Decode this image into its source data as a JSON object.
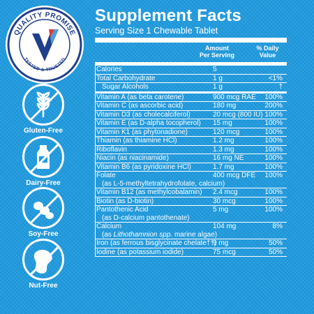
{
  "badge": {
    "top_text": "QUALITY PROMISE",
    "bottom_text": "TESTED & TRUSTED"
  },
  "free_icons": [
    {
      "label": "Gluten-Free",
      "icon": "wheat-icon"
    },
    {
      "label": "Dairy-Free",
      "icon": "milk-bottle-icon"
    },
    {
      "label": "Soy-Free",
      "icon": "soybean-icon"
    },
    {
      "label": "Nut-Free",
      "icon": "peanut-icon"
    }
  ],
  "facts": {
    "title": "Supplement Facts",
    "serving": "Serving Size 1 Chewable Tablet",
    "col_amount_1": "Amount",
    "col_amount_2": "Per Serving",
    "col_dv_1": "% Daily",
    "col_dv_2": "Value",
    "rows": [
      {
        "name": "Calories",
        "amount": "5",
        "dv": ""
      },
      {
        "name": "Total Carbohydrate",
        "amount": "1 g",
        "dv": "<1%"
      },
      {
        "name": "Sugar Alcohols",
        "amount": "1 g",
        "dv": "†"
      },
      {
        "name": "Vitamin A (as beta carotene)",
        "amount": "900 mcg RAE",
        "dv": "100%"
      },
      {
        "name": "Vitamin C (as ascorbic acid)",
        "amount": "180 mg",
        "dv": "200%"
      },
      {
        "name": "Vitamin D3 (as cholecalciferol)",
        "amount": "20 mcg (800 IU)",
        "dv": "100%"
      },
      {
        "name": "Vitamin E (as D-alpha tocopherol)",
        "amount": "15 mg",
        "dv": "100%"
      },
      {
        "name": "Vitamin K1 (as phytonadione)",
        "amount": "120 mcg",
        "dv": "100%"
      },
      {
        "name": "Thiamin (as thiamine HCl)",
        "amount": "1.2 mg",
        "dv": "100%"
      },
      {
        "name": "Riboflavin",
        "amount": "1.3 mg",
        "dv": "100%"
      },
      {
        "name": "Niacin (as niacinamide)",
        "amount": "16 mg NE",
        "dv": "100%"
      },
      {
        "name": "Vitamin B6 (as pyridoxine HCl)",
        "amount": "1.7 mg",
        "dv": "100%"
      },
      {
        "name": "Folate",
        "amount": "400 mcg DFE",
        "dv": "100%",
        "sub": "(as L-5-methyltetrahydrofolate, calcium)"
      },
      {
        "name": "Vitamin B12 (as methylcobalamin)",
        "amount": "2.4 mcg",
        "dv": "100%"
      },
      {
        "name": "Biotin (as D-biotin)",
        "amount": "30 mcg",
        "dv": "100%"
      },
      {
        "name": "Pantothenic Acid",
        "amount": "5 mg",
        "dv": "100%",
        "sub": "(as D-calcium pantothenate)"
      },
      {
        "name": "Calcium",
        "amount": "104 mg",
        "dv": "8%",
        "sub_pre": "(as ",
        "sub_em": "Lithothamnion spp.",
        "sub_post": " marine algae)"
      },
      {
        "name": "Iron (as ferrous bisglycinate chelate††)",
        "amount": "9 mg",
        "dv": "50%"
      },
      {
        "name": "Iodine (as potassium iodide)",
        "amount": "75 mcg",
        "dv": "50%"
      }
    ]
  },
  "colors": {
    "background": "#1e9be0",
    "badge_navy": "#1f3f8a",
    "text": "#ffffff"
  }
}
